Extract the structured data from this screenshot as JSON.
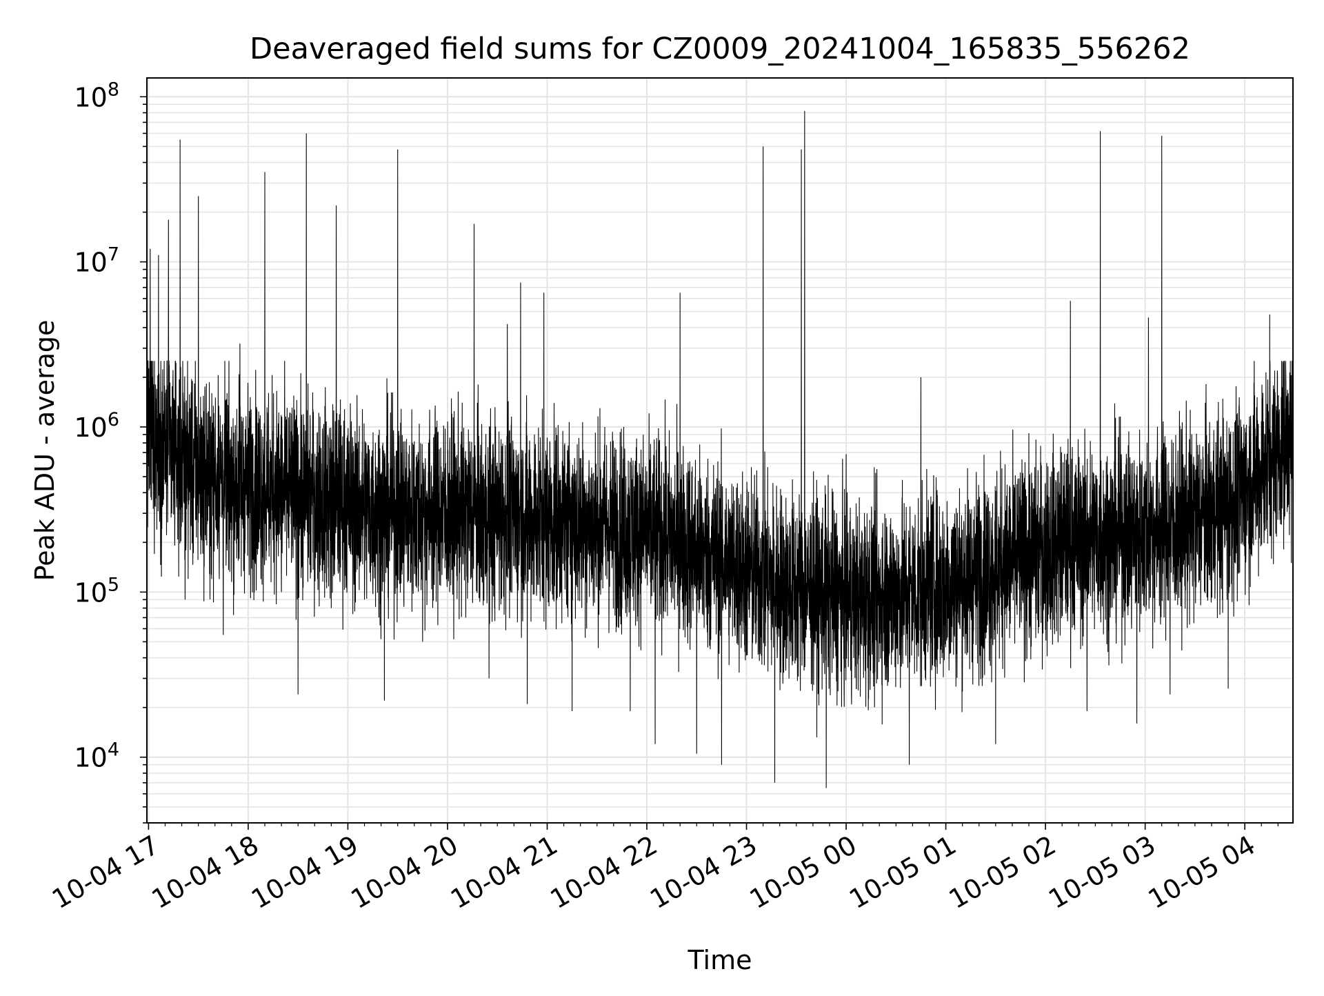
{
  "chart_data": {
    "type": "line",
    "title": "Deaveraged field sums for CZ0009_20241004_165835_556262",
    "xlabel": "Time",
    "ylabel": "Peak ADU - average",
    "yscale": "log",
    "ylim": [
      4000,
      130000000
    ],
    "xlim": [
      "2024-10-04 16:59",
      "2024-10-05 04:29"
    ],
    "grid": true,
    "legend": "none",
    "line_color": "#000000",
    "x_ticks": [
      {
        "x": "2024-10-04 17:00",
        "label": "10-04 17"
      },
      {
        "x": "2024-10-04 18:00",
        "label": "10-04 18"
      },
      {
        "x": "2024-10-04 19:00",
        "label": "10-04 19"
      },
      {
        "x": "2024-10-04 20:00",
        "label": "10-04 20"
      },
      {
        "x": "2024-10-04 21:00",
        "label": "10-04 21"
      },
      {
        "x": "2024-10-04 22:00",
        "label": "10-04 22"
      },
      {
        "x": "2024-10-04 23:00",
        "label": "10-04 23"
      },
      {
        "x": "2024-10-05 00:00",
        "label": "10-05 00"
      },
      {
        "x": "2024-10-05 01:00",
        "label": "10-05 01"
      },
      {
        "x": "2024-10-05 02:00",
        "label": "10-05 02"
      },
      {
        "x": "2024-10-05 03:00",
        "label": "10-05 03"
      },
      {
        "x": "2024-10-05 04:00",
        "label": "10-05 04"
      }
    ],
    "y_ticks": [
      {
        "value": 10000,
        "base": "10",
        "exp": "4"
      },
      {
        "value": 100000,
        "base": "10",
        "exp": "5"
      },
      {
        "value": 1000000,
        "base": "10",
        "exp": "6"
      },
      {
        "value": 10000000,
        "base": "10",
        "exp": "7"
      },
      {
        "value": 100000000,
        "base": "10",
        "exp": "8"
      }
    ],
    "series": [
      {
        "points": [
          [
            "2024-10-04 16:59",
            180000
          ],
          [
            "2024-10-04 17:01",
            12000000
          ],
          [
            "2024-10-04 17:03",
            700000
          ],
          [
            "2024-10-04 17:06",
            11000000
          ],
          [
            "2024-10-04 17:10",
            450000
          ],
          [
            "2024-10-04 17:12",
            18000000
          ],
          [
            "2024-10-04 17:14",
            300000
          ],
          [
            "2024-10-04 17:19",
            55000000
          ],
          [
            "2024-10-04 17:22",
            90000
          ],
          [
            "2024-10-04 17:30",
            25000000
          ],
          [
            "2024-10-04 17:38",
            120000
          ],
          [
            "2024-10-04 17:45",
            55000
          ],
          [
            "2024-10-04 17:55",
            3200000
          ],
          [
            "2024-10-04 18:10",
            35000000
          ],
          [
            "2024-10-04 18:20",
            100000
          ],
          [
            "2024-10-04 18:30",
            24000
          ],
          [
            "2024-10-04 18:35",
            60000000
          ],
          [
            "2024-10-04 18:50",
            80000
          ],
          [
            "2024-10-04 18:53",
            22000000
          ],
          [
            "2024-10-04 19:10",
            90000
          ],
          [
            "2024-10-04 19:22",
            22000
          ],
          [
            "2024-10-04 19:30",
            48000000
          ],
          [
            "2024-10-04 19:45",
            50000
          ],
          [
            "2024-10-04 20:16",
            17000000
          ],
          [
            "2024-10-04 20:25",
            30000
          ],
          [
            "2024-10-04 20:36",
            4200000
          ],
          [
            "2024-10-04 20:44",
            7500000
          ],
          [
            "2024-10-04 20:48",
            21000
          ],
          [
            "2024-10-04 20:58",
            6500000
          ],
          [
            "2024-10-04 21:15",
            19000
          ],
          [
            "2024-10-04 21:50",
            19000
          ],
          [
            "2024-10-04 22:05",
            12000
          ],
          [
            "2024-10-04 22:20",
            6500000
          ],
          [
            "2024-10-04 22:30",
            10500
          ],
          [
            "2024-10-04 22:45",
            9000
          ],
          [
            "2024-10-04 23:10",
            50000000
          ],
          [
            "2024-10-04 23:17",
            7000
          ],
          [
            "2024-10-04 23:33",
            48000000
          ],
          [
            "2024-10-04 23:35",
            82000000
          ],
          [
            "2024-10-04 23:48",
            6500
          ],
          [
            "2024-10-05 00:45",
            2000000
          ],
          [
            "2024-10-05 00:38",
            9000
          ],
          [
            "2024-10-05 01:30",
            12000
          ],
          [
            "2024-10-05 02:15",
            5800000
          ],
          [
            "2024-10-05 02:25",
            19000
          ],
          [
            "2024-10-05 02:33",
            62000000
          ],
          [
            "2024-10-05 02:55",
            16000
          ],
          [
            "2024-10-05 03:02",
            4600000
          ],
          [
            "2024-10-05 03:10",
            58000000
          ],
          [
            "2024-10-05 03:15",
            24000
          ],
          [
            "2024-10-05 03:50",
            26000
          ],
          [
            "2024-10-05 04:15",
            4800000
          ],
          [
            "2024-10-05 04:28",
            150000
          ],
          [
            "2024-10-05 04:29",
            2500000
          ]
        ]
      }
    ]
  }
}
